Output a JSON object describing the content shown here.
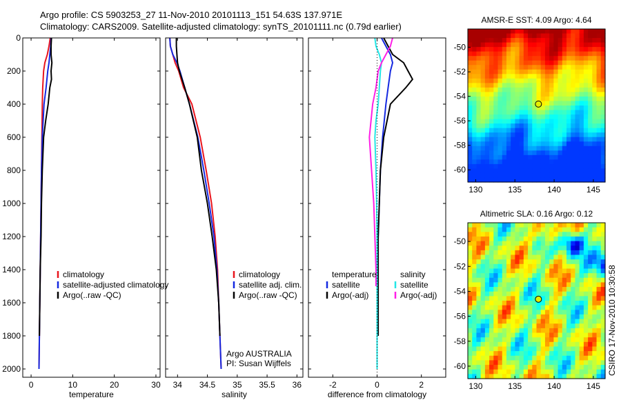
{
  "header": {
    "line1": "Argo profile: CS 5903253_27 11-Nov-2010 20101113_151 54.63S 137.971E",
    "line2": "Climatology: CARS2009. Satellite-adjusted climatology: synTS_20101111.nc (0.79d earlier)"
  },
  "side_label": "CSIRO 17-Nov-2010 10:30:58",
  "colors": {
    "climatology": "#e8141c",
    "satellite": "#1428e0",
    "argo": "#000000",
    "satellite_diff_sal": "#22e6e6",
    "argo_diff_sal": "#ff1ee6"
  },
  "chart_data": [
    {
      "type": "line",
      "xlabel": "temperature",
      "xlim": [
        -2,
        31
      ],
      "ylim": [
        2050,
        0
      ],
      "xticks": [
        "0",
        "10",
        "20",
        "30"
      ],
      "yticks": [
        "0",
        "200",
        "400",
        "600",
        "800",
        "1000",
        "1200",
        "1400",
        "1600",
        "1800",
        "2000"
      ],
      "legend": [
        "climatology",
        "satellite-adjusted climatology",
        "Argo(..raw -QC)"
      ],
      "series": [
        {
          "name": "climatology",
          "color": "#e8141c",
          "x": [
            4.6,
            4.3,
            3.9,
            3.3,
            3.0,
            2.8,
            2.7,
            2.6,
            2.5,
            2.4,
            2.3,
            2.2,
            2.1,
            2.0,
            1.9
          ],
          "y": [
            0,
            50,
            100,
            150,
            200,
            300,
            400,
            600,
            800,
            1000,
            1200,
            1400,
            1600,
            1800,
            2000
          ]
        },
        {
          "name": "satellite-adjusted climatology",
          "color": "#1428e0",
          "x": [
            4.8,
            4.7,
            4.5,
            4.3,
            4.0,
            3.6,
            3.1,
            2.7,
            2.5,
            2.4,
            2.3,
            2.2,
            2.1,
            2.0,
            1.9
          ],
          "y": [
            0,
            50,
            100,
            150,
            200,
            300,
            400,
            600,
            800,
            1000,
            1200,
            1400,
            1600,
            1800,
            2000
          ]
        },
        {
          "name": "Argo(..raw -QC)",
          "color": "#000000",
          "x": [
            4.9,
            4.8,
            4.8,
            5.0,
            4.8,
            4.9,
            4.5,
            4.1,
            3.5,
            3.0,
            2.7,
            2.5,
            2.4,
            2.2,
            2.1,
            2.0
          ],
          "y": [
            0,
            50,
            100,
            150,
            200,
            250,
            300,
            400,
            500,
            600,
            800,
            1000,
            1200,
            1400,
            1600,
            1800
          ]
        }
      ]
    },
    {
      "type": "line",
      "xlabel": "salinity",
      "xlim": [
        33.8,
        36.1
      ],
      "ylim": [
        2050,
        0
      ],
      "xticks": [
        "34",
        "34.5",
        "35",
        "35.5",
        "36"
      ],
      "legend": [
        "climatology",
        "satellite adj. clim.",
        "Argo(..raw -QC)"
      ],
      "annotation": [
        "Argo AUSTRALIA",
        "PI: Susan Wijffels"
      ],
      "series": [
        {
          "name": "climatology",
          "color": "#e8141c",
          "x": [
            33.87,
            33.88,
            33.92,
            33.96,
            34.02,
            34.1,
            34.24,
            34.38,
            34.48,
            34.57,
            34.63,
            34.67,
            34.69,
            34.71,
            34.72,
            34.73
          ],
          "y": [
            0,
            50,
            100,
            150,
            200,
            300,
            400,
            600,
            800,
            1000,
            1200,
            1400,
            1600,
            1800,
            1900,
            2000
          ]
        },
        {
          "name": "satellite adj. clim.",
          "color": "#1428e0",
          "x": [
            33.87,
            33.88,
            33.92,
            33.99,
            34.04,
            34.12,
            34.2,
            34.34,
            34.44,
            34.53,
            34.61,
            34.66,
            34.69,
            34.71,
            34.72,
            34.73
          ],
          "y": [
            0,
            50,
            100,
            150,
            200,
            300,
            400,
            600,
            800,
            1000,
            1200,
            1400,
            1600,
            1800,
            1900,
            2000
          ]
        },
        {
          "name": "Argo(..raw -QC)",
          "color": "#000000",
          "x": [
            33.98,
            33.98,
            33.99,
            34.0,
            34.03,
            34.12,
            34.2,
            34.33,
            34.4,
            34.5,
            34.58,
            34.65,
            34.69,
            34.71
          ],
          "y": [
            0,
            50,
            100,
            150,
            200,
            300,
            400,
            600,
            800,
            1000,
            1200,
            1400,
            1600,
            1800
          ]
        }
      ]
    },
    {
      "type": "line",
      "xlabel": "difference from climatology",
      "xlim": [
        -3.1,
        3.1
      ],
      "ylim": [
        2050,
        0
      ],
      "xticks": [
        "-2",
        "0",
        "2"
      ],
      "legend_groups": {
        "temperature": [
          "satellite",
          "Argo(-adj)"
        ],
        "salinity": [
          "satellite",
          "Argo(-adj)"
        ]
      },
      "series": [
        {
          "name": "temperature satellite",
          "color": "#1428e0",
          "x": [
            0.2,
            0.4,
            0.6,
            0.7,
            0.6,
            0.5,
            0.4,
            0.25,
            0.15,
            0.1,
            0.05,
            0.0,
            0.0,
            0.0,
            0.0
          ],
          "y": [
            0,
            50,
            100,
            150,
            200,
            300,
            400,
            600,
            800,
            1000,
            1200,
            1400,
            1600,
            1800,
            2000
          ]
        },
        {
          "name": "temperature Argo(-adj)",
          "color": "#000000",
          "x": [
            0.3,
            0.5,
            0.7,
            1.2,
            1.4,
            1.6,
            1.3,
            0.6,
            0.3,
            0.15,
            0.1,
            0.05,
            0.05,
            0.05
          ],
          "y": [
            0,
            50,
            100,
            150,
            200,
            250,
            300,
            400,
            600,
            800,
            1000,
            1200,
            1400,
            1800
          ]
        },
        {
          "name": "salinity satellite",
          "color": "#22e6e6",
          "x": [
            -0.1,
            -0.05,
            0.1,
            0.2,
            0.15,
            0.1,
            0.05,
            -0.05,
            -0.1,
            -0.05,
            -0.02,
            0.0,
            0.0,
            0.0,
            0.0
          ],
          "y": [
            0,
            50,
            100,
            150,
            200,
            300,
            400,
            500,
            600,
            800,
            1000,
            1200,
            1400,
            1800,
            2000
          ]
        },
        {
          "name": "salinity Argo(-adj)",
          "color": "#ff1ee6",
          "x": [
            0.7,
            0.6,
            0.4,
            0.2,
            0.05,
            -0.05,
            -0.2,
            -0.35,
            -0.25,
            -0.15,
            -0.1,
            -0.05,
            -0.05
          ],
          "y": [
            0,
            50,
            100,
            150,
            200,
            300,
            400,
            600,
            800,
            1000,
            1200,
            1400,
            1500
          ]
        }
      ]
    },
    {
      "type": "heatmap",
      "title": "AMSR-E SST: 4.09 Argo: 4.64",
      "xlim": [
        129,
        146.5
      ],
      "ylim": [
        -61,
        -48.5
      ],
      "xticks": [
        "130",
        "135",
        "140",
        "145"
      ],
      "yticks": [
        "-50",
        "-52",
        "-54",
        "-56",
        "-58",
        "-60"
      ],
      "marker": {
        "lon": 138.0,
        "lat": -54.63
      }
    },
    {
      "type": "heatmap",
      "title": "Altimetric SLA: 0.16 Argo: 0.12",
      "xlim": [
        129,
        146.5
      ],
      "ylim": [
        -61,
        -48.5
      ],
      "xticks": [
        "130",
        "135",
        "140",
        "145"
      ],
      "yticks": [
        "-50",
        "-52",
        "-54",
        "-56",
        "-58",
        "-60"
      ],
      "marker": {
        "lon": 138.0,
        "lat": -54.63
      }
    }
  ]
}
